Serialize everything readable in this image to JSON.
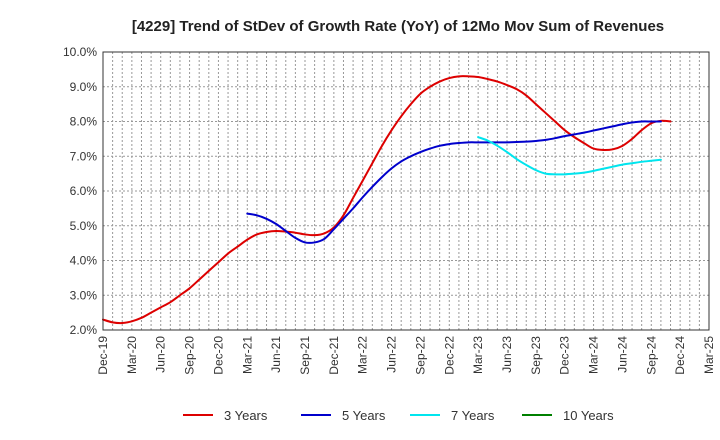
{
  "chart_data": {
    "type": "line",
    "title": "[4229]  Trend of StDev of Growth Rate (YoY) of 12Mo Mov Sum of Revenues",
    "xlabel": "",
    "ylabel": "",
    "ylim": [
      2.0,
      10.0
    ],
    "yticks": [
      "10.0%",
      "9.0%",
      "8.0%",
      "7.0%",
      "6.0%",
      "5.0%",
      "4.0%",
      "3.0%",
      "2.0%"
    ],
    "ytick_values": [
      10,
      9,
      8,
      7,
      6,
      5,
      4,
      3,
      2
    ],
    "xticks": [
      "Dec-19",
      "Mar-20",
      "Jun-20",
      "Sep-20",
      "Dec-20",
      "Mar-21",
      "Jun-21",
      "Sep-21",
      "Dec-21",
      "Mar-22",
      "Jun-22",
      "Sep-22",
      "Dec-22",
      "Mar-23",
      "Jun-23",
      "Sep-23",
      "Dec-23",
      "Mar-24",
      "Jun-24",
      "Sep-24",
      "Dec-24",
      "Mar-25"
    ],
    "x_unit": "months since Dec-19",
    "xlim": [
      0,
      63
    ],
    "grid": true,
    "legend_position": "bottom",
    "series": [
      {
        "name": "3 Years",
        "color": "#dd0000",
        "points": [
          [
            0,
            2.3
          ],
          [
            1,
            2.22
          ],
          [
            2,
            2.2
          ],
          [
            3,
            2.25
          ],
          [
            4,
            2.35
          ],
          [
            5,
            2.5
          ],
          [
            6,
            2.65
          ],
          [
            7,
            2.8
          ],
          [
            8,
            3.0
          ],
          [
            9,
            3.2
          ],
          [
            10,
            3.45
          ],
          [
            11,
            3.7
          ],
          [
            12,
            3.95
          ],
          [
            13,
            4.2
          ],
          [
            14,
            4.4
          ],
          [
            15,
            4.6
          ],
          [
            16,
            4.75
          ],
          [
            17,
            4.82
          ],
          [
            18,
            4.85
          ],
          [
            19,
            4.83
          ],
          [
            20,
            4.8
          ],
          [
            21,
            4.75
          ],
          [
            22,
            4.73
          ],
          [
            23,
            4.78
          ],
          [
            24,
            4.95
          ],
          [
            25,
            5.3
          ],
          [
            26,
            5.8
          ],
          [
            27,
            6.3
          ],
          [
            28,
            6.8
          ],
          [
            29,
            7.3
          ],
          [
            30,
            7.75
          ],
          [
            31,
            8.15
          ],
          [
            32,
            8.5
          ],
          [
            33,
            8.8
          ],
          [
            34,
            9.0
          ],
          [
            35,
            9.15
          ],
          [
            36,
            9.25
          ],
          [
            37,
            9.3
          ],
          [
            38,
            9.3
          ],
          [
            39,
            9.28
          ],
          [
            40,
            9.22
          ],
          [
            41,
            9.15
          ],
          [
            42,
            9.05
          ],
          [
            43,
            8.93
          ],
          [
            44,
            8.75
          ],
          [
            45,
            8.5
          ],
          [
            46,
            8.25
          ],
          [
            47,
            8.0
          ],
          [
            48,
            7.75
          ],
          [
            49,
            7.55
          ],
          [
            50,
            7.38
          ],
          [
            51,
            7.22
          ],
          [
            52,
            7.18
          ],
          [
            53,
            7.2
          ],
          [
            54,
            7.3
          ],
          [
            55,
            7.5
          ],
          [
            56,
            7.75
          ],
          [
            57,
            7.95
          ],
          [
            58,
            8.02
          ],
          [
            59,
            8.0
          ]
        ]
      },
      {
        "name": "5 Years",
        "color": "#0000cc",
        "points": [
          [
            15,
            5.35
          ],
          [
            16,
            5.3
          ],
          [
            17,
            5.2
          ],
          [
            18,
            5.05
          ],
          [
            19,
            4.85
          ],
          [
            20,
            4.65
          ],
          [
            21,
            4.52
          ],
          [
            22,
            4.52
          ],
          [
            23,
            4.62
          ],
          [
            24,
            4.9
          ],
          [
            25,
            5.2
          ],
          [
            26,
            5.5
          ],
          [
            27,
            5.82
          ],
          [
            28,
            6.12
          ],
          [
            29,
            6.4
          ],
          [
            30,
            6.65
          ],
          [
            31,
            6.85
          ],
          [
            32,
            7.0
          ],
          [
            33,
            7.12
          ],
          [
            34,
            7.22
          ],
          [
            35,
            7.3
          ],
          [
            36,
            7.35
          ],
          [
            37,
            7.38
          ],
          [
            38,
            7.4
          ],
          [
            39,
            7.4
          ],
          [
            40,
            7.4
          ],
          [
            41,
            7.4
          ],
          [
            42,
            7.4
          ],
          [
            43,
            7.41
          ],
          [
            44,
            7.42
          ],
          [
            45,
            7.44
          ],
          [
            46,
            7.47
          ],
          [
            47,
            7.52
          ],
          [
            48,
            7.58
          ],
          [
            49,
            7.63
          ],
          [
            50,
            7.68
          ],
          [
            51,
            7.74
          ],
          [
            52,
            7.8
          ],
          [
            53,
            7.86
          ],
          [
            54,
            7.92
          ],
          [
            55,
            7.97
          ],
          [
            56,
            8.0
          ],
          [
            57,
            8.0
          ],
          [
            58,
            8.0
          ]
        ]
      },
      {
        "name": "7 Years",
        "color": "#00e5ee",
        "points": [
          [
            39,
            7.55
          ],
          [
            40,
            7.45
          ],
          [
            41,
            7.3
          ],
          [
            42,
            7.12
          ],
          [
            43,
            6.92
          ],
          [
            44,
            6.75
          ],
          [
            45,
            6.6
          ],
          [
            46,
            6.5
          ],
          [
            47,
            6.48
          ],
          [
            48,
            6.48
          ],
          [
            49,
            6.5
          ],
          [
            50,
            6.53
          ],
          [
            51,
            6.58
          ],
          [
            52,
            6.64
          ],
          [
            53,
            6.7
          ],
          [
            54,
            6.76
          ],
          [
            55,
            6.8
          ],
          [
            56,
            6.84
          ],
          [
            57,
            6.87
          ],
          [
            58,
            6.9
          ]
        ]
      },
      {
        "name": "10 Years",
        "color": "#008000",
        "points": []
      }
    ]
  }
}
